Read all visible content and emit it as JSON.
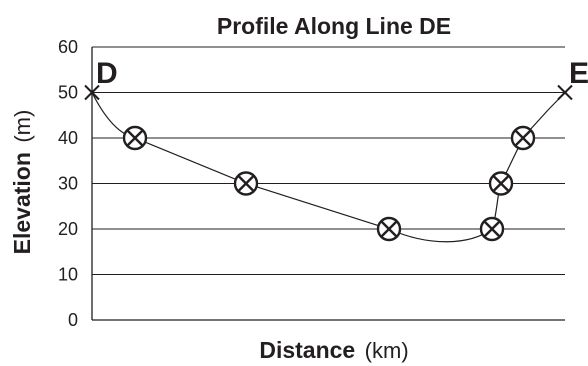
{
  "chart_data": {
    "type": "line",
    "title": "Profile Along Line DE",
    "xlabel_main": "Distance",
    "xlabel_unit": "(km)",
    "ylabel_main": "Elevation",
    "ylabel_unit": "(m)",
    "ylim": [
      0,
      60
    ],
    "yticks": [
      "0",
      "10",
      "20",
      "30",
      "40",
      "50",
      "60"
    ],
    "grid": true,
    "start_label": "D",
    "end_label": "E",
    "endpoints": [
      50,
      50
    ],
    "elevation_points": [
      40,
      30,
      20,
      20,
      30,
      40
    ],
    "colors": {
      "ink": "#231f20",
      "background": "#ffffff"
    }
  }
}
